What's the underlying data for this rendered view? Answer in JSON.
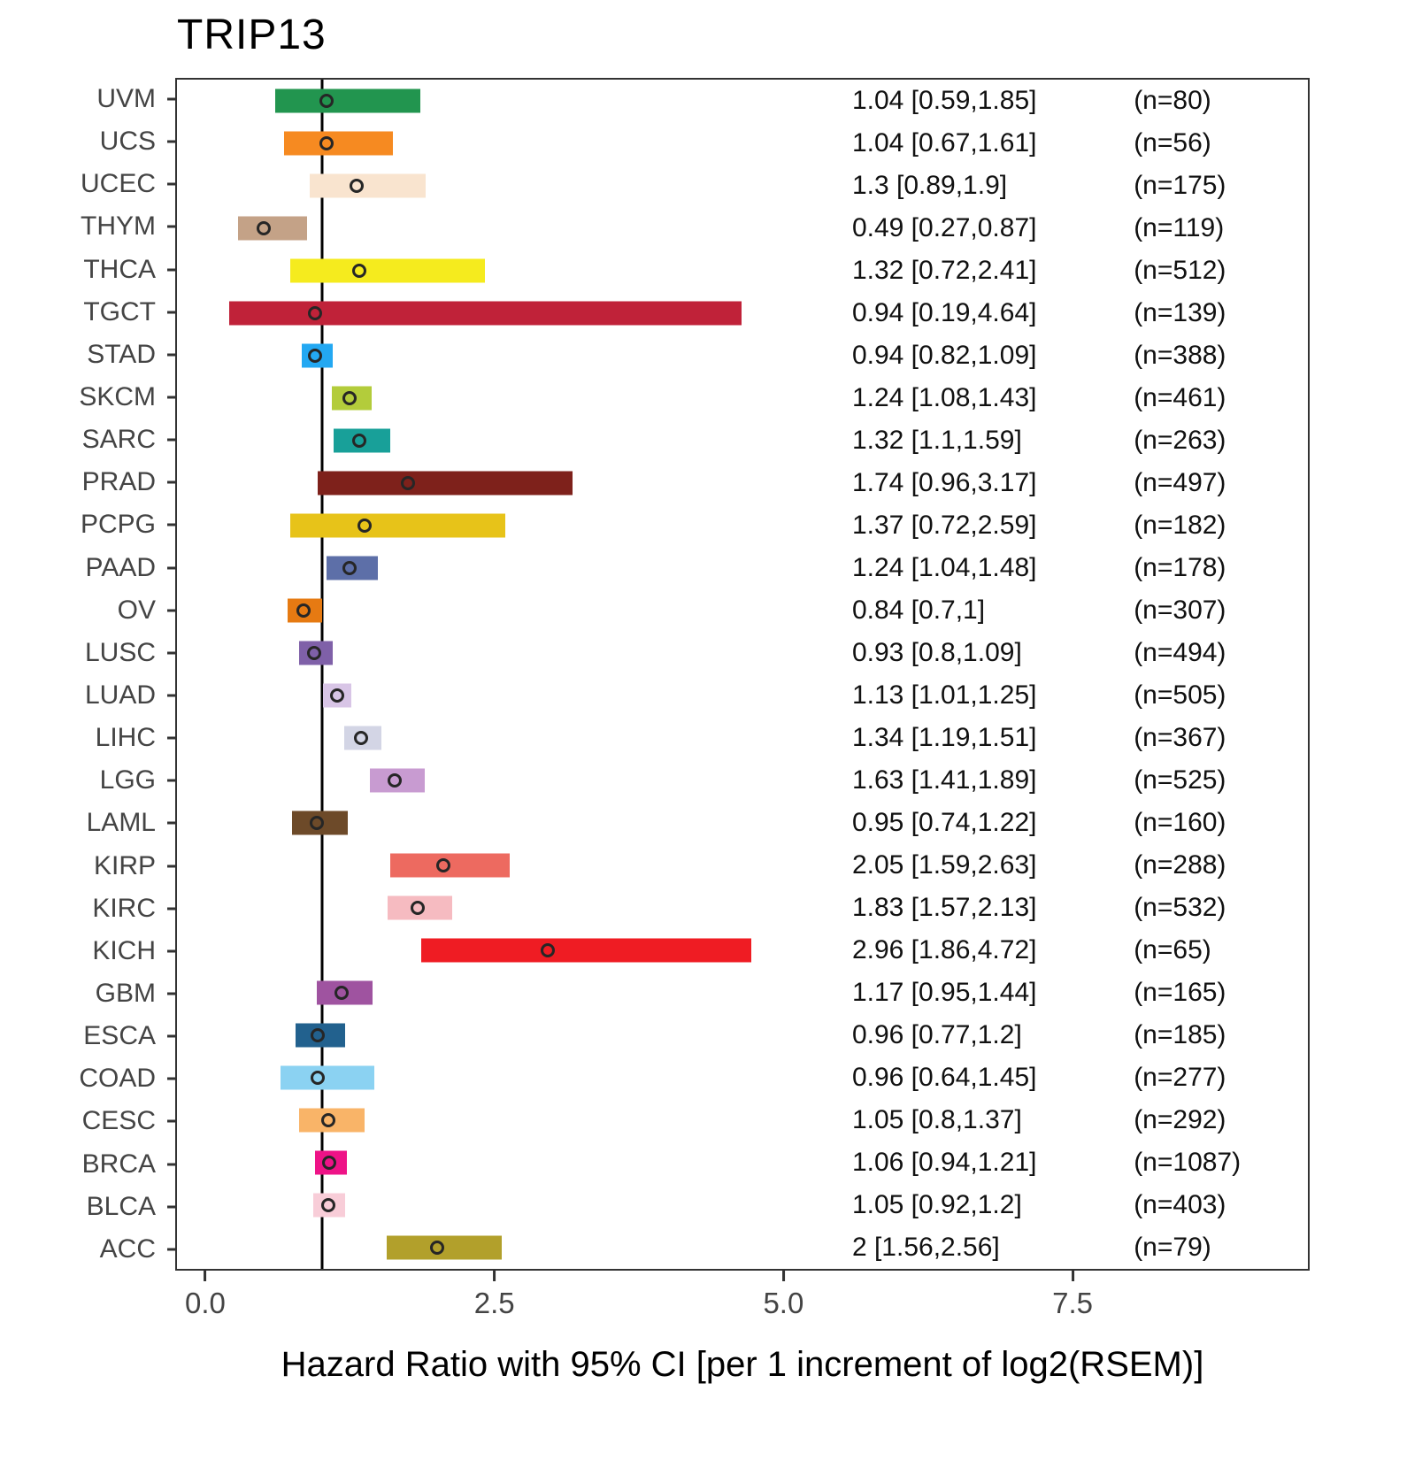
{
  "title": "TRIP13",
  "chart_data": {
    "type": "forest",
    "title": "TRIP13",
    "xlabel": "Hazard Ratio with 95% CI [per 1 increment of log2(RSEM)]",
    "x_ticks": [
      {
        "value": 0,
        "label": "0.0"
      },
      {
        "value": 2.5,
        "label": "2.5"
      },
      {
        "value": 5,
        "label": "5.0"
      },
      {
        "value": 7.5,
        "label": "7.5"
      }
    ],
    "x_range": [
      -0.26,
      9.55
    ],
    "reference_line": 1,
    "grid": false,
    "legend_position": "none",
    "rows": [
      {
        "label": "UVM",
        "hr": 1.04,
        "lo": 0.59,
        "hi": 1.85,
        "text": "1.04 [0.59,1.85]",
        "n_text": "(n=80)",
        "color": "#22954f"
      },
      {
        "label": "UCS",
        "hr": 1.04,
        "lo": 0.67,
        "hi": 1.61,
        "text": "1.04 [0.67,1.61]",
        "n_text": "(n=56)",
        "color": "#f68a21"
      },
      {
        "label": "UCEC",
        "hr": 1.3,
        "lo": 0.89,
        "hi": 1.9,
        "text": "1.3 [0.89,1.9]",
        "n_text": "(n=175)",
        "color": "#f9e4cf"
      },
      {
        "label": "THYM",
        "hr": 0.49,
        "lo": 0.27,
        "hi": 0.87,
        "text": "0.49 [0.27,0.87]",
        "n_text": "(n=119)",
        "color": "#c4a287"
      },
      {
        "label": "THCA",
        "hr": 1.32,
        "lo": 0.72,
        "hi": 2.41,
        "text": "1.32 [0.72,2.41]",
        "n_text": "(n=512)",
        "color": "#f5eb1e"
      },
      {
        "label": "TGCT",
        "hr": 0.94,
        "lo": 0.19,
        "hi": 4.64,
        "text": "0.94 [0.19,4.64]",
        "n_text": "(n=139)",
        "color": "#c02239"
      },
      {
        "label": "STAD",
        "hr": 0.94,
        "lo": 0.82,
        "hi": 1.09,
        "text": "0.94 [0.82,1.09]",
        "n_text": "(n=388)",
        "color": "#23a8f2"
      },
      {
        "label": "SKCM",
        "hr": 1.24,
        "lo": 1.08,
        "hi": 1.43,
        "text": "1.24 [1.08,1.43]",
        "n_text": "(n=461)",
        "color": "#b3cc3b"
      },
      {
        "label": "SARC",
        "hr": 1.32,
        "lo": 1.1,
        "hi": 1.59,
        "text": "1.32 [1.1,1.59]",
        "n_text": "(n=263)",
        "color": "#18a099"
      },
      {
        "label": "PRAD",
        "hr": 1.74,
        "lo": 0.96,
        "hi": 3.17,
        "text": "1.74 [0.96,3.17]",
        "n_text": "(n=497)",
        "color": "#7e211b"
      },
      {
        "label": "PCPG",
        "hr": 1.37,
        "lo": 0.72,
        "hi": 2.59,
        "text": "1.37 [0.72,2.59]",
        "n_text": "(n=182)",
        "color": "#e7c319"
      },
      {
        "label": "PAAD",
        "hr": 1.24,
        "lo": 1.04,
        "hi": 1.48,
        "text": "1.24 [1.04,1.48]",
        "n_text": "(n=178)",
        "color": "#5d6fa8"
      },
      {
        "label": "OV",
        "hr": 0.84,
        "lo": 0.7,
        "hi": 1,
        "text": "0.84 [0.7,1]",
        "n_text": "(n=307)",
        "color": "#e67a12"
      },
      {
        "label": "LUSC",
        "hr": 0.93,
        "lo": 0.8,
        "hi": 1.09,
        "text": "0.93 [0.8,1.09]",
        "n_text": "(n=494)",
        "color": "#7f60a8"
      },
      {
        "label": "LUAD",
        "hr": 1.13,
        "lo": 1.01,
        "hi": 1.25,
        "text": "1.13 [1.01,1.25]",
        "n_text": "(n=505)",
        "color": "#d8c5e6"
      },
      {
        "label": "LIHC",
        "hr": 1.34,
        "lo": 1.19,
        "hi": 1.51,
        "text": "1.34 [1.19,1.51]",
        "n_text": "(n=367)",
        "color": "#d3d5e5"
      },
      {
        "label": "LGG",
        "hr": 1.63,
        "lo": 1.41,
        "hi": 1.89,
        "text": "1.63 [1.41,1.89]",
        "n_text": "(n=525)",
        "color": "#c89bd1"
      },
      {
        "label": "LAML",
        "hr": 0.95,
        "lo": 0.74,
        "hi": 1.22,
        "text": "0.95 [0.74,1.22]",
        "n_text": "(n=160)",
        "color": "#6d4a29"
      },
      {
        "label": "KIRP",
        "hr": 2.05,
        "lo": 1.59,
        "hi": 2.63,
        "text": "2.05 [1.59,2.63]",
        "n_text": "(n=288)",
        "color": "#ed6a60"
      },
      {
        "label": "KIRC",
        "hr": 1.83,
        "lo": 1.57,
        "hi": 2.13,
        "text": "1.83 [1.57,2.13]",
        "n_text": "(n=532)",
        "color": "#f6bbc1"
      },
      {
        "label": "KICH",
        "hr": 2.96,
        "lo": 1.86,
        "hi": 4.72,
        "text": "2.96 [1.86,4.72]",
        "n_text": "(n=65)",
        "color": "#ef1c23"
      },
      {
        "label": "GBM",
        "hr": 1.17,
        "lo": 0.95,
        "hi": 1.44,
        "text": "1.17 [0.95,1.44]",
        "n_text": "(n=165)",
        "color": "#9f53a0"
      },
      {
        "label": "ESCA",
        "hr": 0.96,
        "lo": 0.77,
        "hi": 1.2,
        "text": "0.96 [0.77,1.2]",
        "n_text": "(n=185)",
        "color": "#22618e"
      },
      {
        "label": "COAD",
        "hr": 0.96,
        "lo": 0.64,
        "hi": 1.45,
        "text": "0.96 [0.64,1.45]",
        "n_text": "(n=277)",
        "color": "#8bd2f2"
      },
      {
        "label": "CESC",
        "hr": 1.05,
        "lo": 0.8,
        "hi": 1.37,
        "text": "1.05 [0.8,1.37]",
        "n_text": "(n=292)",
        "color": "#f9b468"
      },
      {
        "label": "BRCA",
        "hr": 1.06,
        "lo": 0.94,
        "hi": 1.21,
        "text": "1.06 [0.94,1.21]",
        "n_text": "(n=1087)",
        "color": "#ee1387"
      },
      {
        "label": "BLCA",
        "hr": 1.05,
        "lo": 0.92,
        "hi": 1.2,
        "text": "1.05 [0.92,1.2]",
        "n_text": "(n=403)",
        "color": "#f8cdd8"
      },
      {
        "label": "ACC",
        "hr": 2,
        "lo": 1.56,
        "hi": 2.56,
        "text": "2 [1.56,2.56]",
        "n_text": "(n=79)",
        "color": "#b2a02b"
      }
    ]
  }
}
